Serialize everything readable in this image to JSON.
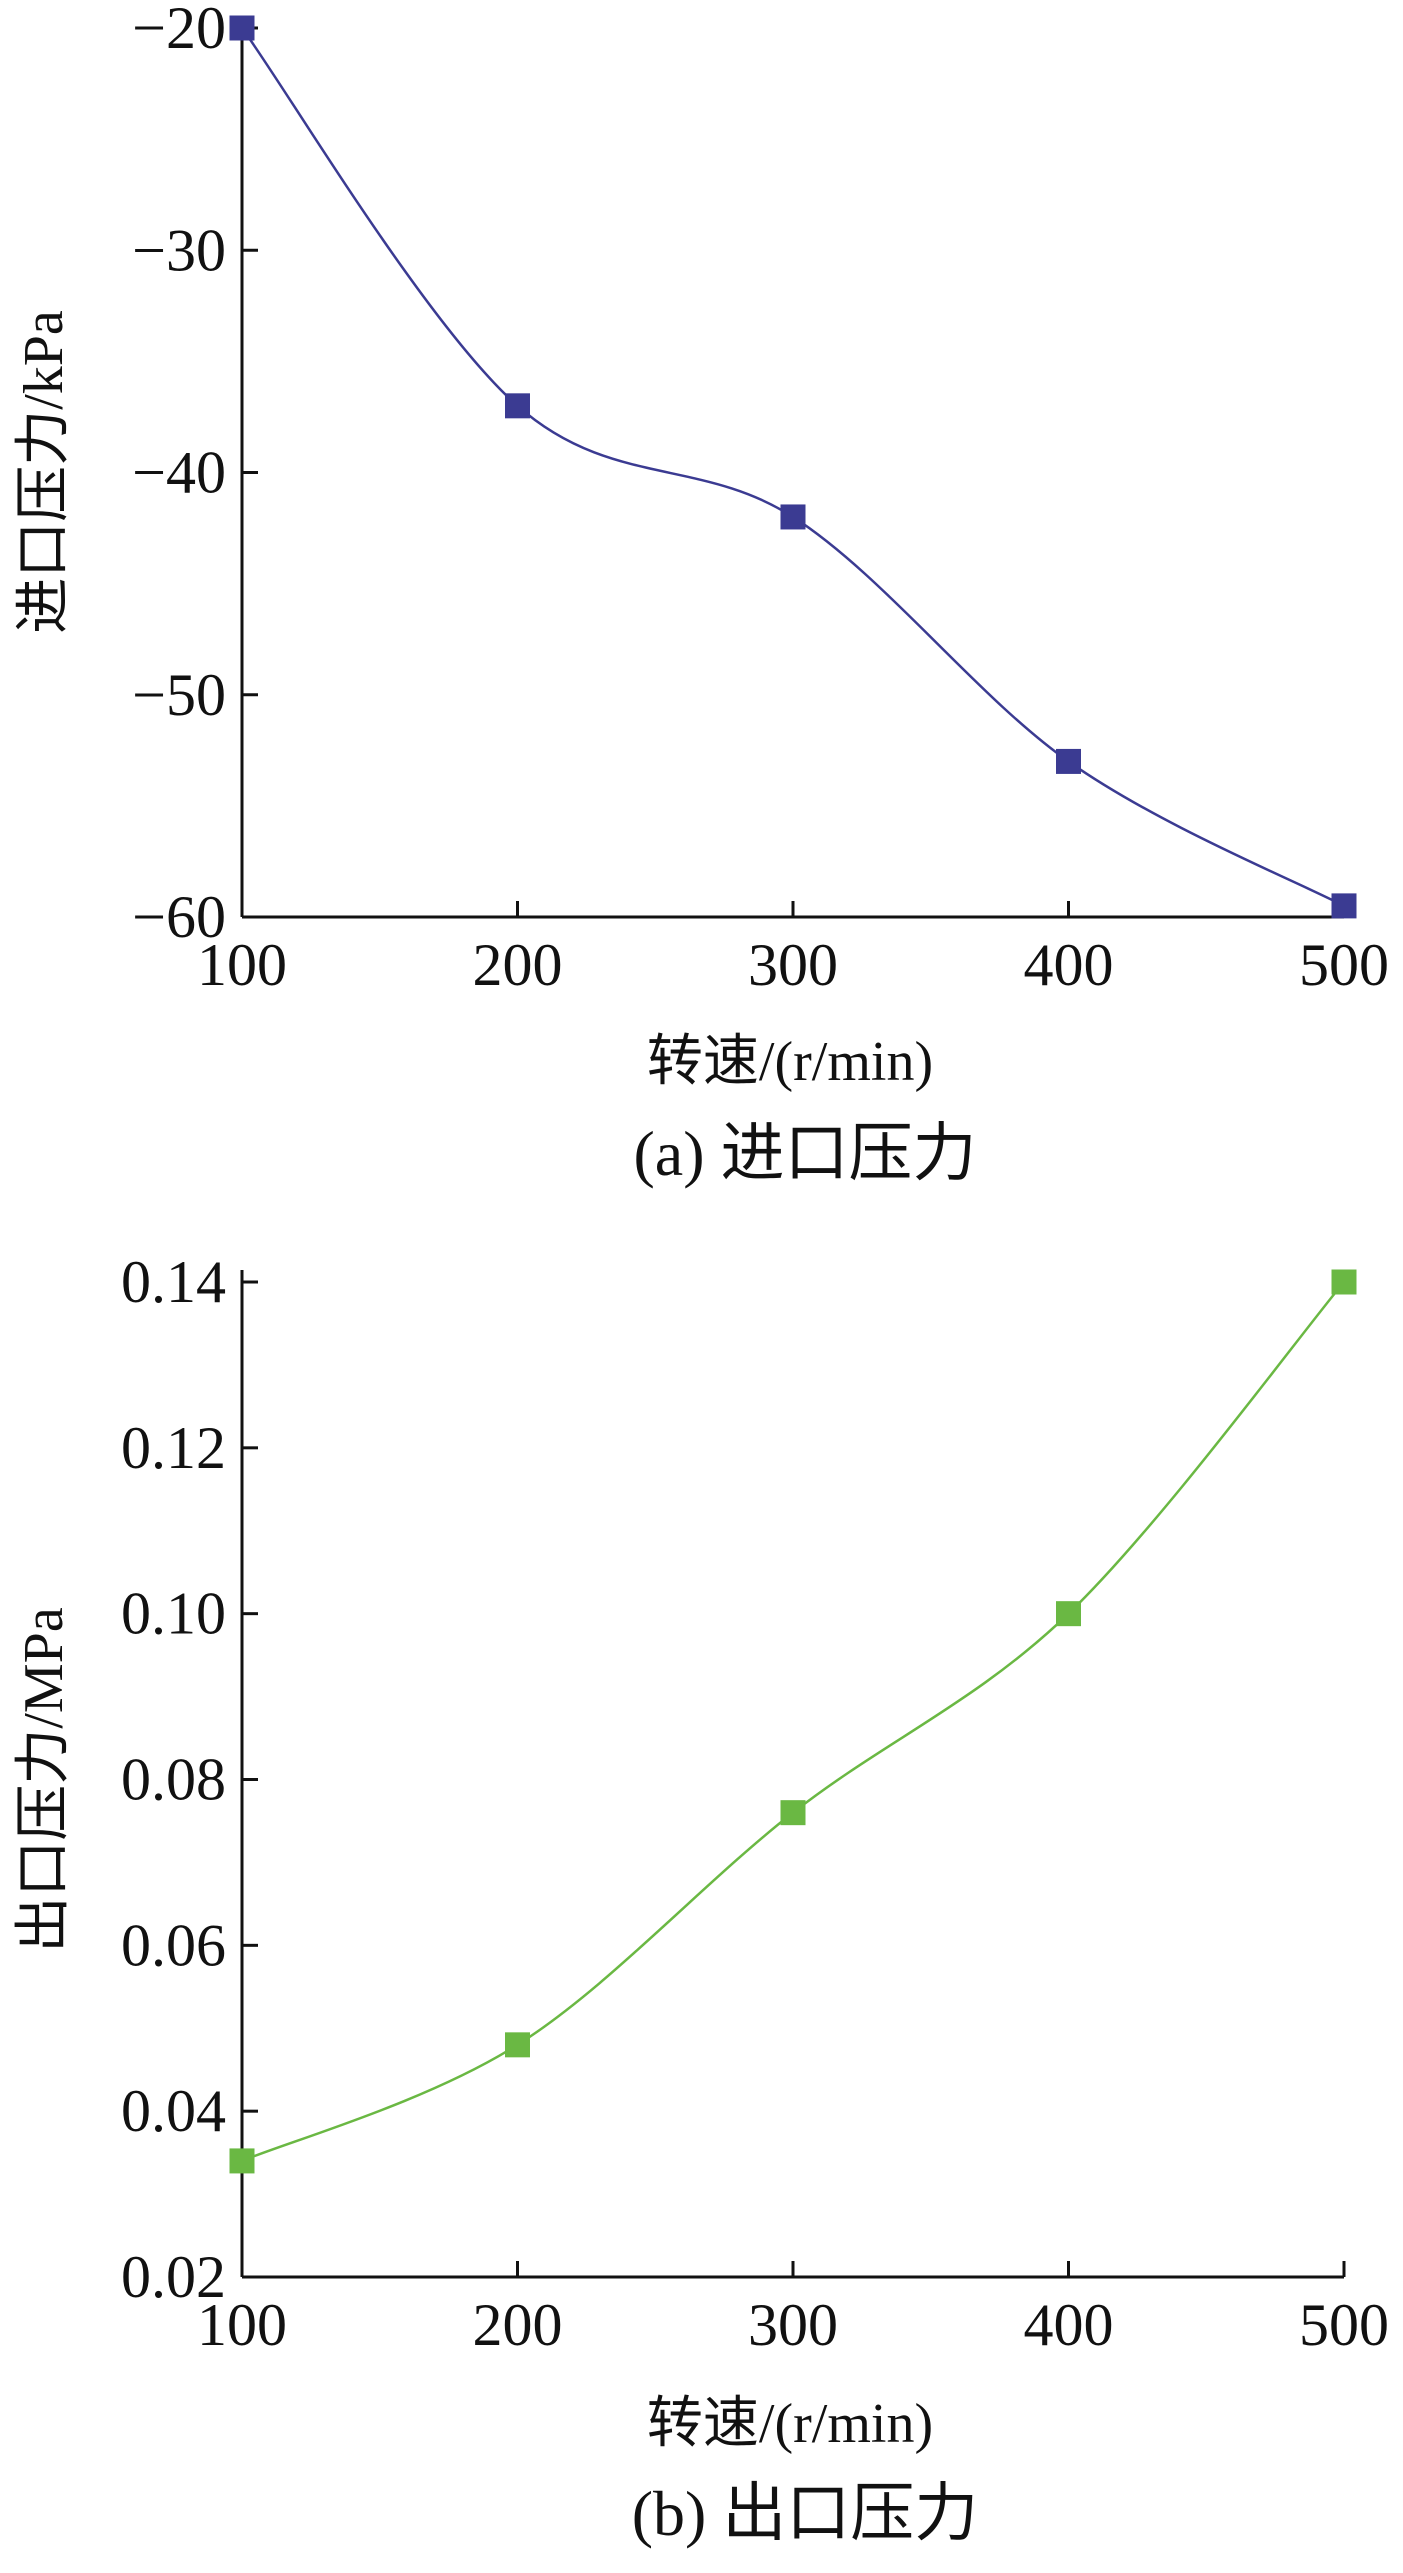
{
  "chart_data": [
    {
      "id": "a",
      "type": "line",
      "caption": "(a)  进口压力",
      "xlabel": "转速/(r/min)",
      "ylabel": "进口压力/kPa",
      "x": [
        100,
        200,
        300,
        400,
        500
      ],
      "xticks": [
        "100",
        "200",
        "300",
        "400",
        "500"
      ],
      "yticks": [
        "−20",
        "−30",
        "−40",
        "−50",
        "−60"
      ],
      "yticks_values": [
        -20,
        -30,
        -40,
        -50,
        -60
      ],
      "xlim": [
        100,
        500
      ],
      "ylim": [
        -60,
        -20
      ],
      "grid": false,
      "series": [
        {
          "values": [
            -20,
            -37,
            -42,
            -53,
            -59.5
          ],
          "color": "#3b3b92",
          "marker": "square"
        }
      ]
    },
    {
      "id": "b",
      "type": "line",
      "caption": "(b)  出口压力",
      "xlabel": "转速/(r/min)",
      "ylabel": "出口压力/MPa",
      "x": [
        100,
        200,
        300,
        400,
        500
      ],
      "xticks": [
        "100",
        "200",
        "300",
        "400",
        "500"
      ],
      "yticks": [
        "0.02",
        "0.04",
        "0.06",
        "0.08",
        "0.10",
        "0.12",
        "0.14"
      ],
      "yticks_values": [
        0.02,
        0.04,
        0.06,
        0.08,
        0.1,
        0.12,
        0.14
      ],
      "xlim": [
        100,
        500
      ],
      "ylim": [
        0.02,
        0.14
      ],
      "grid": false,
      "series": [
        {
          "values": [
            0.034,
            0.048,
            0.076,
            0.1,
            0.14
          ],
          "color": "#6ab843",
          "marker": "square"
        }
      ]
    }
  ]
}
